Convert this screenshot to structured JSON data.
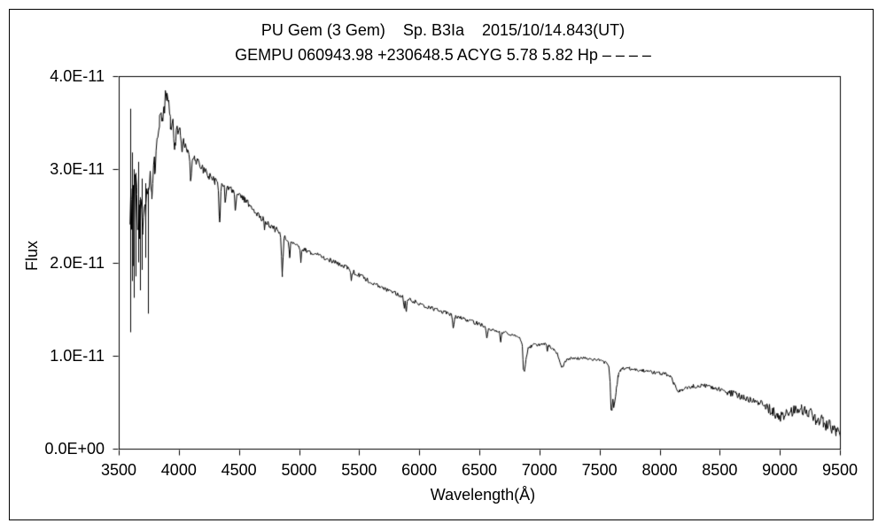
{
  "figure": {
    "title_line1": "PU Gem (3 Gem)    Sp. B3Ia    2015/10/14.843(UT)",
    "title_line2": "GEMPU 060943.98 +230648.5 ACYG 5.78 5.82 Hp – – – –"
  },
  "chart_data": {
    "type": "line",
    "title": "PU Gem (3 Gem)    Sp. B3Ia    2015/10/14.843(UT)",
    "subtitle": "GEMPU 060943.98 +230648.5 ACYG 5.78 5.82 Hp – – – –",
    "xlabel": "Wavelength(Å)",
    "ylabel": "Flux",
    "legend": "none",
    "grid": false,
    "line_color": "#000000",
    "background": "#ffffff",
    "x_axis": {
      "min": 3500,
      "max": 9500,
      "ticks": [
        3500,
        4000,
        4500,
        5000,
        5500,
        6000,
        6500,
        7000,
        7500,
        8000,
        8500,
        9000,
        9500
      ]
    },
    "y_axis": {
      "min_units": 0,
      "max_units": 4,
      "units_scale": "1E-11",
      "ticks": [
        {
          "value_units": 0,
          "label": "0.0E+00"
        },
        {
          "value_units": 1,
          "label": "1.0E-11"
        },
        {
          "value_units": 2,
          "label": "2.0E-11"
        },
        {
          "value_units": 3,
          "label": "3.0E-11"
        },
        {
          "value_units": 4,
          "label": "4.0E-11"
        }
      ]
    },
    "noise_seed": 20151014,
    "sample_start": 3594,
    "sample_end": 9540,
    "sample_step": 7,
    "continuum_points": [
      [
        3590,
        2.4
      ],
      [
        3605,
        2.5
      ],
      [
        3625,
        2.45
      ],
      [
        3650,
        2.52
      ],
      [
        3675,
        2.55
      ],
      [
        3700,
        2.5
      ],
      [
        3725,
        2.56
      ],
      [
        3750,
        2.65
      ],
      [
        3775,
        2.8
      ],
      [
        3800,
        3.05
      ],
      [
        3820,
        3.25
      ],
      [
        3840,
        3.45
      ],
      [
        3860,
        3.6
      ],
      [
        3880,
        3.72
      ],
      [
        3900,
        3.78
      ],
      [
        3915,
        3.72
      ],
      [
        3930,
        3.62
      ],
      [
        3945,
        3.55
      ],
      [
        3960,
        3.42
      ],
      [
        3975,
        3.38
      ],
      [
        3990,
        3.45
      ],
      [
        4010,
        3.4
      ],
      [
        4040,
        3.3
      ],
      [
        4070,
        3.22
      ],
      [
        4100,
        3.15
      ],
      [
        4130,
        3.12
      ],
      [
        4160,
        3.07
      ],
      [
        4200,
        3.0
      ],
      [
        4250,
        2.93
      ],
      [
        4300,
        2.87
      ],
      [
        4350,
        2.82
      ],
      [
        4400,
        2.8
      ],
      [
        4450,
        2.77
      ],
      [
        4500,
        2.73
      ],
      [
        4550,
        2.67
      ],
      [
        4600,
        2.6
      ],
      [
        4650,
        2.53
      ],
      [
        4700,
        2.46
      ],
      [
        4750,
        2.41
      ],
      [
        4800,
        2.36
      ],
      [
        4861,
        2.29
      ],
      [
        4900,
        2.24
      ],
      [
        4950,
        2.2
      ],
      [
        5000,
        2.16
      ],
      [
        5050,
        2.13
      ],
      [
        5100,
        2.1
      ],
      [
        5200,
        2.06
      ],
      [
        5300,
        2.0
      ],
      [
        5400,
        1.94
      ],
      [
        5500,
        1.86
      ],
      [
        5600,
        1.79
      ],
      [
        5700,
        1.72
      ],
      [
        5800,
        1.67
      ],
      [
        5900,
        1.61
      ],
      [
        6000,
        1.56
      ],
      [
        6100,
        1.51
      ],
      [
        6200,
        1.47
      ],
      [
        6300,
        1.42
      ],
      [
        6400,
        1.38
      ],
      [
        6500,
        1.34
      ],
      [
        6600,
        1.28
      ],
      [
        6700,
        1.25
      ],
      [
        6800,
        1.21
      ],
      [
        6840,
        1.18
      ],
      [
        6858,
        1.1
      ],
      [
        6866,
        0.85
      ],
      [
        6876,
        0.82
      ],
      [
        6888,
        0.96
      ],
      [
        6905,
        1.07
      ],
      [
        6930,
        1.1
      ],
      [
        6960,
        1.12
      ],
      [
        7000,
        1.11
      ],
      [
        7040,
        1.13
      ],
      [
        7080,
        1.1
      ],
      [
        7120,
        1.06
      ],
      [
        7150,
        1.02
      ],
      [
        7170,
        0.93
      ],
      [
        7190,
        0.87
      ],
      [
        7210,
        0.92
      ],
      [
        7230,
        0.96
      ],
      [
        7270,
        0.97
      ],
      [
        7320,
        0.97
      ],
      [
        7380,
        0.97
      ],
      [
        7440,
        0.96
      ],
      [
        7500,
        0.95
      ],
      [
        7540,
        0.93
      ],
      [
        7575,
        0.9
      ],
      [
        7588,
        0.72
      ],
      [
        7596,
        0.43
      ],
      [
        7604,
        0.41
      ],
      [
        7611,
        0.54
      ],
      [
        7618,
        0.44
      ],
      [
        7626,
        0.49
      ],
      [
        7638,
        0.62
      ],
      [
        7655,
        0.78
      ],
      [
        7675,
        0.85
      ],
      [
        7700,
        0.86
      ],
      [
        7750,
        0.86
      ],
      [
        7800,
        0.85
      ],
      [
        7850,
        0.84
      ],
      [
        7900,
        0.83
      ],
      [
        7950,
        0.82
      ],
      [
        8000,
        0.81
      ],
      [
        8050,
        0.8
      ],
      [
        8090,
        0.78
      ],
      [
        8120,
        0.7
      ],
      [
        8140,
        0.64
      ],
      [
        8165,
        0.62
      ],
      [
        8190,
        0.63
      ],
      [
        8230,
        0.65
      ],
      [
        8280,
        0.67
      ],
      [
        8340,
        0.68
      ],
      [
        8400,
        0.67
      ],
      [
        8460,
        0.65
      ],
      [
        8520,
        0.63
      ],
      [
        8580,
        0.6
      ],
      [
        8640,
        0.58
      ],
      [
        8700,
        0.55
      ],
      [
        8760,
        0.52
      ],
      [
        8820,
        0.5
      ],
      [
        8880,
        0.46
      ],
      [
        8940,
        0.4
      ],
      [
        8980,
        0.36
      ],
      [
        9020,
        0.34
      ],
      [
        9070,
        0.38
      ],
      [
        9120,
        0.41
      ],
      [
        9180,
        0.42
      ],
      [
        9240,
        0.39
      ],
      [
        9300,
        0.33
      ],
      [
        9360,
        0.28
      ],
      [
        9420,
        0.24
      ],
      [
        9470,
        0.2
      ],
      [
        9510,
        0.15
      ],
      [
        9540,
        0.11
      ]
    ],
    "absorption_lines": [
      [
        3934,
        5,
        0.18
      ],
      [
        3968,
        6,
        0.15
      ],
      [
        4026,
        5,
        0.14
      ],
      [
        4101,
        6,
        0.28
      ],
      [
        4144,
        4,
        0.08
      ],
      [
        4340,
        6,
        0.38
      ],
      [
        4387,
        4,
        0.14
      ],
      [
        4471,
        5,
        0.22
      ],
      [
        4713,
        4,
        0.08
      ],
      [
        4861,
        6,
        0.42
      ],
      [
        4922,
        4,
        0.17
      ],
      [
        5015,
        4,
        0.16
      ],
      [
        5435,
        5,
        0.1
      ],
      [
        5875,
        5,
        0.12
      ],
      [
        5893,
        5,
        0.13
      ],
      [
        6283,
        6,
        0.14
      ],
      [
        6563,
        6,
        0.13
      ],
      [
        6678,
        4,
        0.12
      ],
      [
        7065,
        4,
        0.06
      ]
    ],
    "noise_regions": [
      [
        3590,
        3650,
        0.5
      ],
      [
        3650,
        3725,
        0.38
      ],
      [
        3725,
        3790,
        0.28
      ],
      [
        3790,
        3900,
        0.13
      ],
      [
        3900,
        3995,
        0.08
      ],
      [
        3995,
        4400,
        0.045
      ],
      [
        4400,
        4900,
        0.035
      ],
      [
        4900,
        5600,
        0.025
      ],
      [
        5600,
        6600,
        0.022
      ],
      [
        6600,
        7600,
        0.016
      ],
      [
        7600,
        8100,
        0.018
      ],
      [
        8100,
        8550,
        0.022
      ],
      [
        8550,
        8900,
        0.038
      ],
      [
        8900,
        9250,
        0.055
      ],
      [
        9250,
        9450,
        0.075
      ],
      [
        9450,
        9545,
        0.11
      ]
    ],
    "spikes": [
      [
        3597,
        1.25,
        3.65
      ],
      [
        3609,
        1.8,
        3.18
      ],
      [
        3622,
        1.62,
        3.0
      ],
      [
        3641,
        1.85,
        2.96
      ],
      [
        3663,
        2.0,
        3.08
      ],
      [
        3678,
        1.7,
        2.7
      ],
      [
        3692,
        1.92,
        2.9
      ],
      [
        3720,
        2.05,
        2.85
      ],
      [
        3741,
        1.45,
        2.8
      ]
    ]
  }
}
